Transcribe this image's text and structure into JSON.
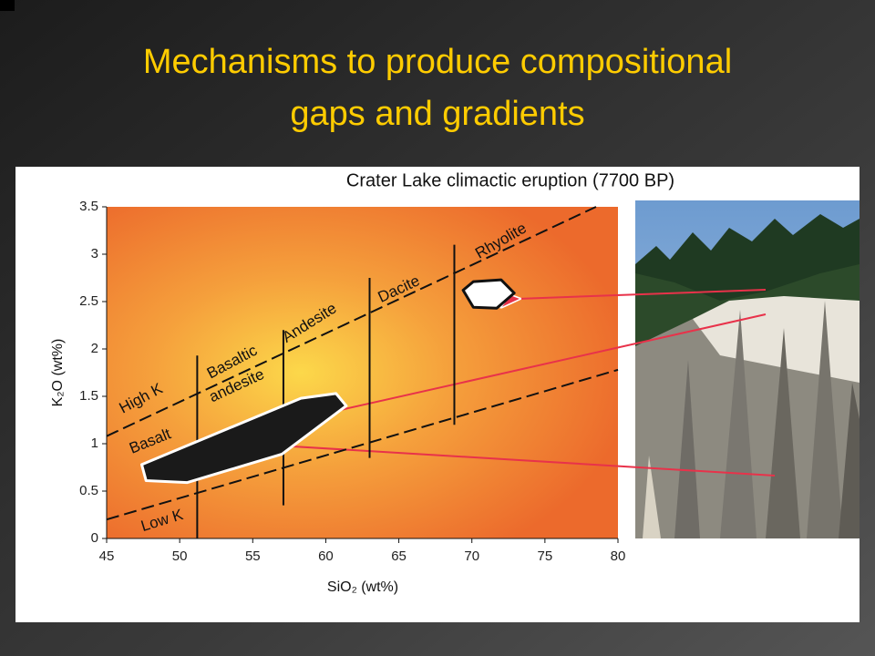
{
  "title": [
    "Mechanisms to produce compositional",
    "gaps and gradients"
  ],
  "chart_data": {
    "type": "polygon",
    "title": "Crater Lake climactic eruption (7700 BP)",
    "x_label": "SiO₂ (wt%)",
    "y_label": "K₂O (wt%)",
    "xlim": [
      45,
      80
    ],
    "xticks": [
      45,
      50,
      55,
      60,
      65,
      70,
      75,
      80
    ],
    "ylim": [
      0,
      3.5
    ],
    "yticks": [
      0,
      0.5,
      1,
      1.5,
      2,
      2.5,
      3,
      3.5
    ],
    "fields": [
      {
        "color": "#1a1a1a",
        "x": [
          47.4,
          47.7,
          50.5,
          57.0,
          61.4,
          60.7,
          58.3
        ],
        "values": [
          0.78,
          0.61,
          0.59,
          0.89,
          1.4,
          1.53,
          1.48
        ]
      },
      {
        "color": "#ffffff",
        "x": [
          69.4,
          70.1,
          71.7,
          72.9,
          72.0,
          70.1
        ],
        "values": [
          2.62,
          2.44,
          2.43,
          2.59,
          2.73,
          2.71
        ]
      }
    ],
    "boundaries": [
      {
        "dash": true,
        "x": [
          45,
          78.5
        ],
        "values": [
          1.08,
          3.5
        ]
      },
      {
        "dash": true,
        "x": [
          45,
          80
        ],
        "values": [
          0.2,
          1.78
        ]
      },
      {
        "dash": false,
        "x": [
          51.2,
          51.2
        ],
        "values": [
          0,
          1.93
        ]
      },
      {
        "dash": false,
        "x": [
          57.1,
          57.1
        ],
        "values": [
          0.35,
          2.2
        ]
      },
      {
        "dash": false,
        "x": [
          63.0,
          63.0
        ],
        "values": [
          0.85,
          2.75
        ]
      },
      {
        "dash": false,
        "x": [
          68.8,
          68.8
        ],
        "values": [
          1.2,
          3.1
        ]
      }
    ],
    "annotations": [
      "High K",
      "Low K",
      "Basalt",
      "Basaltic",
      "andesite",
      "Andesite",
      "Dacite",
      "Rhyolite"
    ]
  }
}
